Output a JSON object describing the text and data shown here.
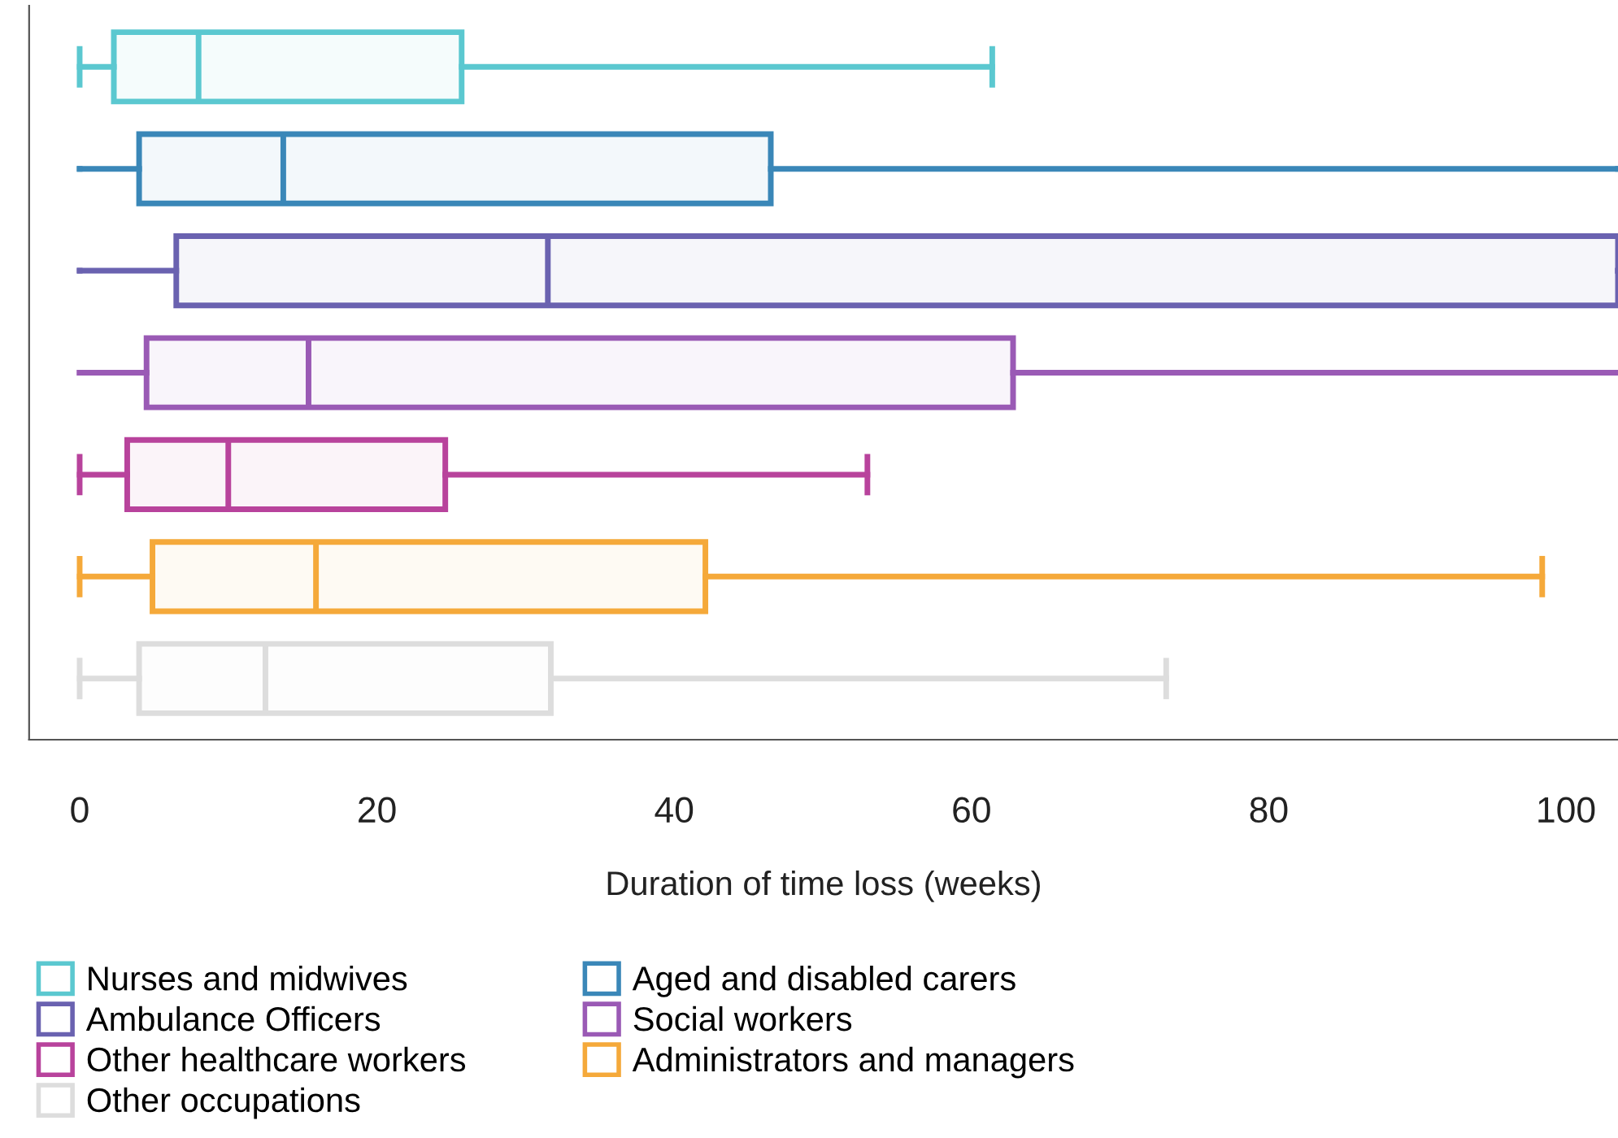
{
  "chart_data": {
    "type": "box",
    "orientation": "horizontal",
    "xlabel": "Duration of time loss (weeks)",
    "categories": [
      null,
      null,
      null,
      null,
      null,
      null,
      null
    ],
    "xlim": [
      -3.4,
      103.5
    ],
    "xticks": [
      0,
      20,
      40,
      60,
      80,
      100
    ],
    "tick_labels": "x",
    "grid": false,
    "legend": "bottom",
    "series": [
      {
        "name": "Nurses and midwives",
        "color": "#5bc8d0",
        "boxes": [
          {
            "low": 0,
            "q1": 2.3,
            "median": 8.0,
            "q3": 25.7,
            "high": 61.4
          },
          null,
          null,
          null,
          null,
          null,
          null
        ]
      },
      {
        "name": "Aged and disabled carers",
        "color": "#3a87b8",
        "boxes": [
          null,
          {
            "low": 0,
            "q1": 4.0,
            "median": 13.7,
            "q3": 46.5,
            "high": 103.5
          },
          null,
          null,
          null,
          null,
          null
        ]
      },
      {
        "name": "Ambulance Officers",
        "color": "#6a62b0",
        "boxes": [
          null,
          null,
          {
            "low": 0,
            "q1": 6.5,
            "median": 31.5,
            "q3": 103.5,
            "high": 103.5
          },
          null,
          null,
          null,
          null
        ]
      },
      {
        "name": "Social workers",
        "color": "#9a5ab5",
        "boxes": [
          null,
          null,
          null,
          {
            "low": 0,
            "q1": 4.5,
            "median": 15.4,
            "q3": 62.8,
            "high": 103.5
          },
          null,
          null,
          null
        ]
      },
      {
        "name": "Other healthcare workers",
        "color": "#b8439c",
        "boxes": [
          null,
          null,
          null,
          null,
          {
            "low": 0,
            "q1": 3.2,
            "median": 10.0,
            "q3": 24.6,
            "high": 53.0
          },
          null,
          null
        ]
      },
      {
        "name": "Administrators and managers",
        "color": "#f5a93a",
        "boxes": [
          null,
          null,
          null,
          null,
          null,
          {
            "low": 0,
            "q1": 4.9,
            "median": 15.9,
            "q3": 42.1,
            "high": 98.4
          },
          null
        ]
      },
      {
        "name": "Other occupations",
        "color": "#dddddd",
        "boxes": [
          null,
          null,
          null,
          null,
          null,
          null,
          {
            "low": 0,
            "q1": 4.0,
            "median": 12.5,
            "q3": 31.7,
            "high": 73.1
          }
        ]
      }
    ]
  }
}
